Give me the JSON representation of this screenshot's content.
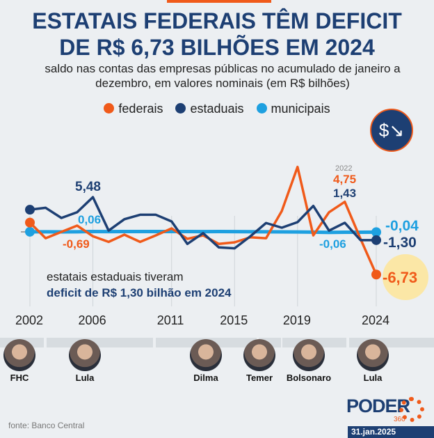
{
  "header": {
    "title_line1": "ESTATAIS FEDERAIS TÊM DEFICIT",
    "title_line2": "DE R$ 6,73 BILHÕES EM 2024",
    "subtitle": "saldo nas contas das empresas públicas no acumulado de janeiro a dezembro, em valores nominais (em R$ bilhões)",
    "icon": "money-down-trend-icon"
  },
  "colors": {
    "federais": "#f05a1a",
    "estaduais": "#1d3f73",
    "municipais": "#1ea0e0",
    "highlight": "#fbe7a6"
  },
  "chart_data": {
    "type": "line",
    "x": [
      2002,
      2003,
      2004,
      2005,
      2006,
      2007,
      2008,
      2009,
      2010,
      2011,
      2012,
      2013,
      2014,
      2015,
      2016,
      2017,
      2018,
      2019,
      2020,
      2021,
      2022,
      2023,
      2024
    ],
    "series": [
      {
        "name": "federais",
        "values": [
          1.47,
          -1.0,
          0,
          0.99,
          -0.69,
          -1.58,
          -0.44,
          -1.58,
          -0.55,
          0.55,
          -1.1,
          -0.55,
          -1.9,
          -1.65,
          -0.85,
          -1.0,
          3.3,
          10.25,
          -0.55,
          3.1,
          4.75,
          -1.1,
          -6.73
        ]
      },
      {
        "name": "estaduais",
        "values": [
          3.5,
          3.8,
          2.2,
          3.1,
          5.48,
          0.2,
          2.0,
          2.7,
          2.7,
          1.65,
          -1.9,
          -0.2,
          -2.45,
          -2.6,
          -0.7,
          1.4,
          0.66,
          1.54,
          4.1,
          0.2,
          1.43,
          -1.3,
          -1.3
        ]
      },
      {
        "name": "municipais",
        "values": [
          0.02,
          0.01,
          0,
          0.02,
          0.06,
          0.04,
          0.05,
          0.06,
          0.05,
          0.06,
          0.05,
          0.04,
          0.05,
          0.04,
          0.03,
          0.02,
          0.0,
          -0.02,
          -0.04,
          -0.08,
          -0.06,
          -0.05,
          -0.04
        ]
      }
    ],
    "tick_labels": [
      "2002",
      "2006",
      "2011",
      "2015",
      "2019",
      "2024"
    ],
    "data_labels": {
      "est2006": "5,48",
      "mun2006": "0,06",
      "fed2006": "-0,69",
      "year2022": "2022",
      "fed2022": "4,75",
      "est2022": "1,43",
      "mun2022": "-0,06",
      "mun2024": "-0,04",
      "est2024": "-1,30",
      "fed2024": "-6,73"
    },
    "annotation": {
      "line1": "estatais estaduais tiveram",
      "line2": "deficit de R$ 1,30 bilhão em 2024"
    },
    "grid": "vertical at tick years",
    "legend": "top-center"
  },
  "presidents": [
    "FHC",
    "Lula",
    "Dilma",
    "Temer",
    "Bolsonaro",
    "Lula"
  ],
  "footer": {
    "source": "fonte: Banco Central",
    "logo": "PODER",
    "logo_sub": "360",
    "date": "31.jan.2025"
  }
}
